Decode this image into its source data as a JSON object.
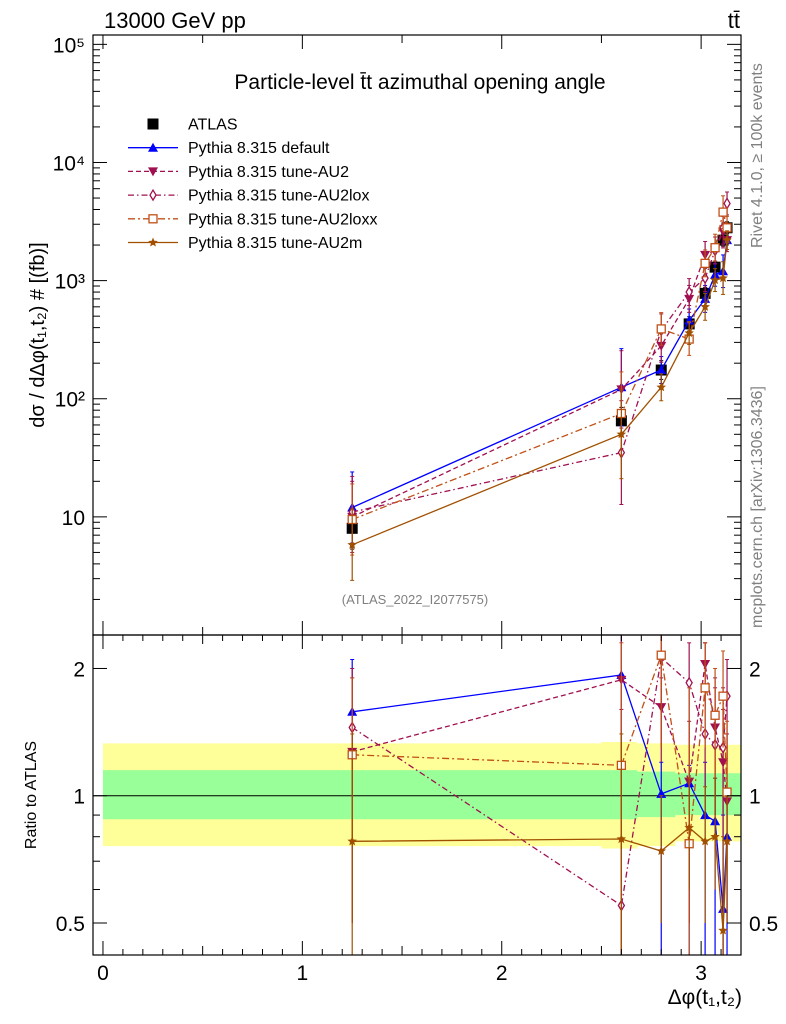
{
  "header": {
    "energy": "13000 GeV pp",
    "process": "tt̄"
  },
  "side": {
    "rivet": "Rivet 4.1.0, ≥ 100k events",
    "mcplots": "mcplots.cern.ch [arXiv:1306.3436]"
  },
  "chart_data": [
    {
      "type": "scatter",
      "title": "Particle-level t̄t azimuthal opening angle",
      "watermark": "(ATLAS_2022_I2077575)",
      "xlabel": "Δφ(t₁,t₂)",
      "ylabel": "dσ / dΔφ(t₁,t₂) # [(fb)]",
      "yscale": "log",
      "xlim": [
        -0.05,
        3.2
      ],
      "ylim": [
        1,
        120000
      ],
      "yticks": [
        {
          "v": 10,
          "label": "10"
        },
        {
          "v": 100,
          "label": "10²"
        },
        {
          "v": 1000,
          "label": "10³"
        },
        {
          "v": 10000,
          "label": "10⁴"
        },
        {
          "v": 100000,
          "label": "10⁵"
        }
      ],
      "legend_position": "top-left",
      "x": [
        1.25,
        2.6,
        2.8,
        2.94,
        3.02,
        3.07,
        3.11,
        3.13
      ],
      "series": [
        {
          "name": "ATLAS",
          "color": "#000000",
          "marker": "square",
          "line": "none",
          "values": [
            8,
            65,
            175,
            430,
            780,
            1300,
            2200,
            2800
          ],
          "err": [
            0.2,
            0.12,
            0.08,
            0.06,
            0.05,
            0.05,
            0.05,
            0.05
          ]
        },
        {
          "name": "Pythia 8.315 default",
          "color": "#0000ff",
          "marker": "triangle-up",
          "line": "solid",
          "values": [
            12.0,
            125,
            175,
            460,
            700,
            1120,
            1200,
            2200
          ],
          "err": [
            0.4,
            0.45,
            0.12,
            0.1,
            0.12,
            0.1,
            0.15,
            0.08
          ]
        },
        {
          "name": "Pythia 8.315 tune-AU2",
          "color": "#a01050",
          "marker": "triangle-down",
          "line": "dashed",
          "values": [
            10.0,
            120,
            280,
            700,
            1650,
            1800,
            2600,
            2200
          ],
          "err": [
            0.4,
            0.45,
            0.15,
            0.12,
            0.12,
            0.12,
            0.15,
            0.1
          ]
        },
        {
          "name": "Pythia 8.315 tune-AU2lox",
          "color": "#a01050",
          "marker": "diamond-open",
          "line": "dotdash",
          "values": [
            11.0,
            35,
            380,
            800,
            1050,
            1800,
            2800,
            4500
          ],
          "err": [
            0.4,
            0.7,
            0.15,
            0.12,
            0.12,
            0.12,
            0.15,
            0.1
          ]
        },
        {
          "name": "Pythia 8.315 tune-AU2loxx",
          "color": "#c05018",
          "marker": "square-open",
          "line": "dashdot",
          "values": [
            9.5,
            75,
            390,
            320,
            1400,
            1900,
            3800,
            2800
          ],
          "err": [
            0.4,
            0.5,
            0.15,
            0.15,
            0.12,
            0.12,
            0.15,
            0.1
          ]
        },
        {
          "name": "Pythia 8.315 tune-AU2m",
          "color": "#a05000",
          "marker": "star",
          "line": "solid",
          "values": [
            5.8,
            50,
            125,
            360,
            600,
            1010,
            1050,
            2200
          ],
          "err": [
            0.4,
            0.55,
            0.12,
            0.1,
            0.12,
            0.1,
            0.15,
            0.08
          ]
        }
      ]
    },
    {
      "type": "scatter",
      "ylabel": "Ratio to ATLAS",
      "xlabel": "Δφ(t₁,t₂)",
      "yscale": "log",
      "xlim": [
        -0.05,
        3.2
      ],
      "ylim": [
        0.42,
        2.4
      ],
      "xticks": [
        {
          "v": 0,
          "label": "0"
        },
        {
          "v": 1,
          "label": "1"
        },
        {
          "v": 2,
          "label": "2"
        },
        {
          "v": 3,
          "label": "3"
        }
      ],
      "yticks": [
        {
          "v": 0.5,
          "label": "0.5"
        },
        {
          "v": 1,
          "label": "1"
        },
        {
          "v": 2,
          "label": "2"
        }
      ],
      "bands": {
        "x": [
          0,
          2.5,
          2.68,
          2.87,
          3.2
        ],
        "yellow_lo": [
          0.76,
          0.75,
          0.76,
          0.78,
          0.78
        ],
        "yellow_hi": [
          1.33,
          1.34,
          1.33,
          1.32,
          1.32
        ],
        "green_lo": [
          0.88,
          0.88,
          0.89,
          0.9,
          0.9
        ],
        "green_hi": [
          1.15,
          1.15,
          1.14,
          1.13,
          1.13
        ]
      },
      "x": [
        1.25,
        2.6,
        2.8,
        2.94,
        3.02,
        3.07,
        3.11,
        3.13
      ],
      "series": [
        {
          "name": "Pythia 8.315 default",
          "values": [
            1.58,
            1.93,
            1.01,
            1.07,
            0.9,
            0.87,
            0.54,
            0.8
          ],
          "err_lo": [
            1.0,
            1.1,
            0.12,
            0.1,
            0.1,
            0.12,
            0.12,
            0.1
          ],
          "err_hi": [
            2.1,
            2.6,
            1.2,
            1.18,
            1.2,
            1.1,
            0.9,
            1.0
          ]
        },
        {
          "name": "Pythia 8.315 tune-AU2",
          "values": [
            1.27,
            1.88,
            1.62,
            1.08,
            2.05,
            1.45,
            1.2,
            0.97
          ],
          "err_lo": [
            0.5,
            0.3,
            1.2,
            0.5,
            1.6,
            0.9,
            0.4,
            0.5
          ],
          "err_hi": [
            1.9,
            2.5,
            1.9,
            1.5,
            2.3,
            1.8,
            1.6,
            1.4
          ]
        },
        {
          "name": "Pythia 8.315 tune-AU2lox",
          "values": [
            1.45,
            0.55,
            2.12,
            1.85,
            1.4,
            1.32,
            1.3,
            1.72
          ],
          "err_lo": [
            0.5,
            0.3,
            1.3,
            0.5,
            0.9,
            0.9,
            0.9,
            1.2
          ],
          "err_hi": [
            2.0,
            1.6,
            2.4,
            2.3,
            2.3,
            1.9,
            1.8,
            2.1
          ]
        },
        {
          "name": "Pythia 8.315 tune-AU2loxx",
          "values": [
            1.25,
            1.18,
            2.15,
            0.77,
            1.8,
            1.55,
            1.72,
            1.02
          ],
          "err_lo": [
            0.5,
            0.3,
            1.3,
            0.4,
            1.3,
            1.0,
            1.3,
            0.7
          ],
          "err_hi": [
            1.9,
            2.3,
            2.4,
            1.8,
            2.3,
            2.0,
            2.2,
            1.5
          ]
        },
        {
          "name": "Pythia 8.315 tune-AU2m",
          "values": [
            0.78,
            0.79,
            0.74,
            0.84,
            0.78,
            0.8,
            0.48,
            0.78
          ],
          "err_lo": [
            0.3,
            0.3,
            0.5,
            0.6,
            0.5,
            0.6,
            0.3,
            0.5
          ],
          "err_hi": [
            1.4,
            1.4,
            1.0,
            1.1,
            1.05,
            1.1,
            0.8,
            1.0
          ]
        }
      ]
    }
  ]
}
